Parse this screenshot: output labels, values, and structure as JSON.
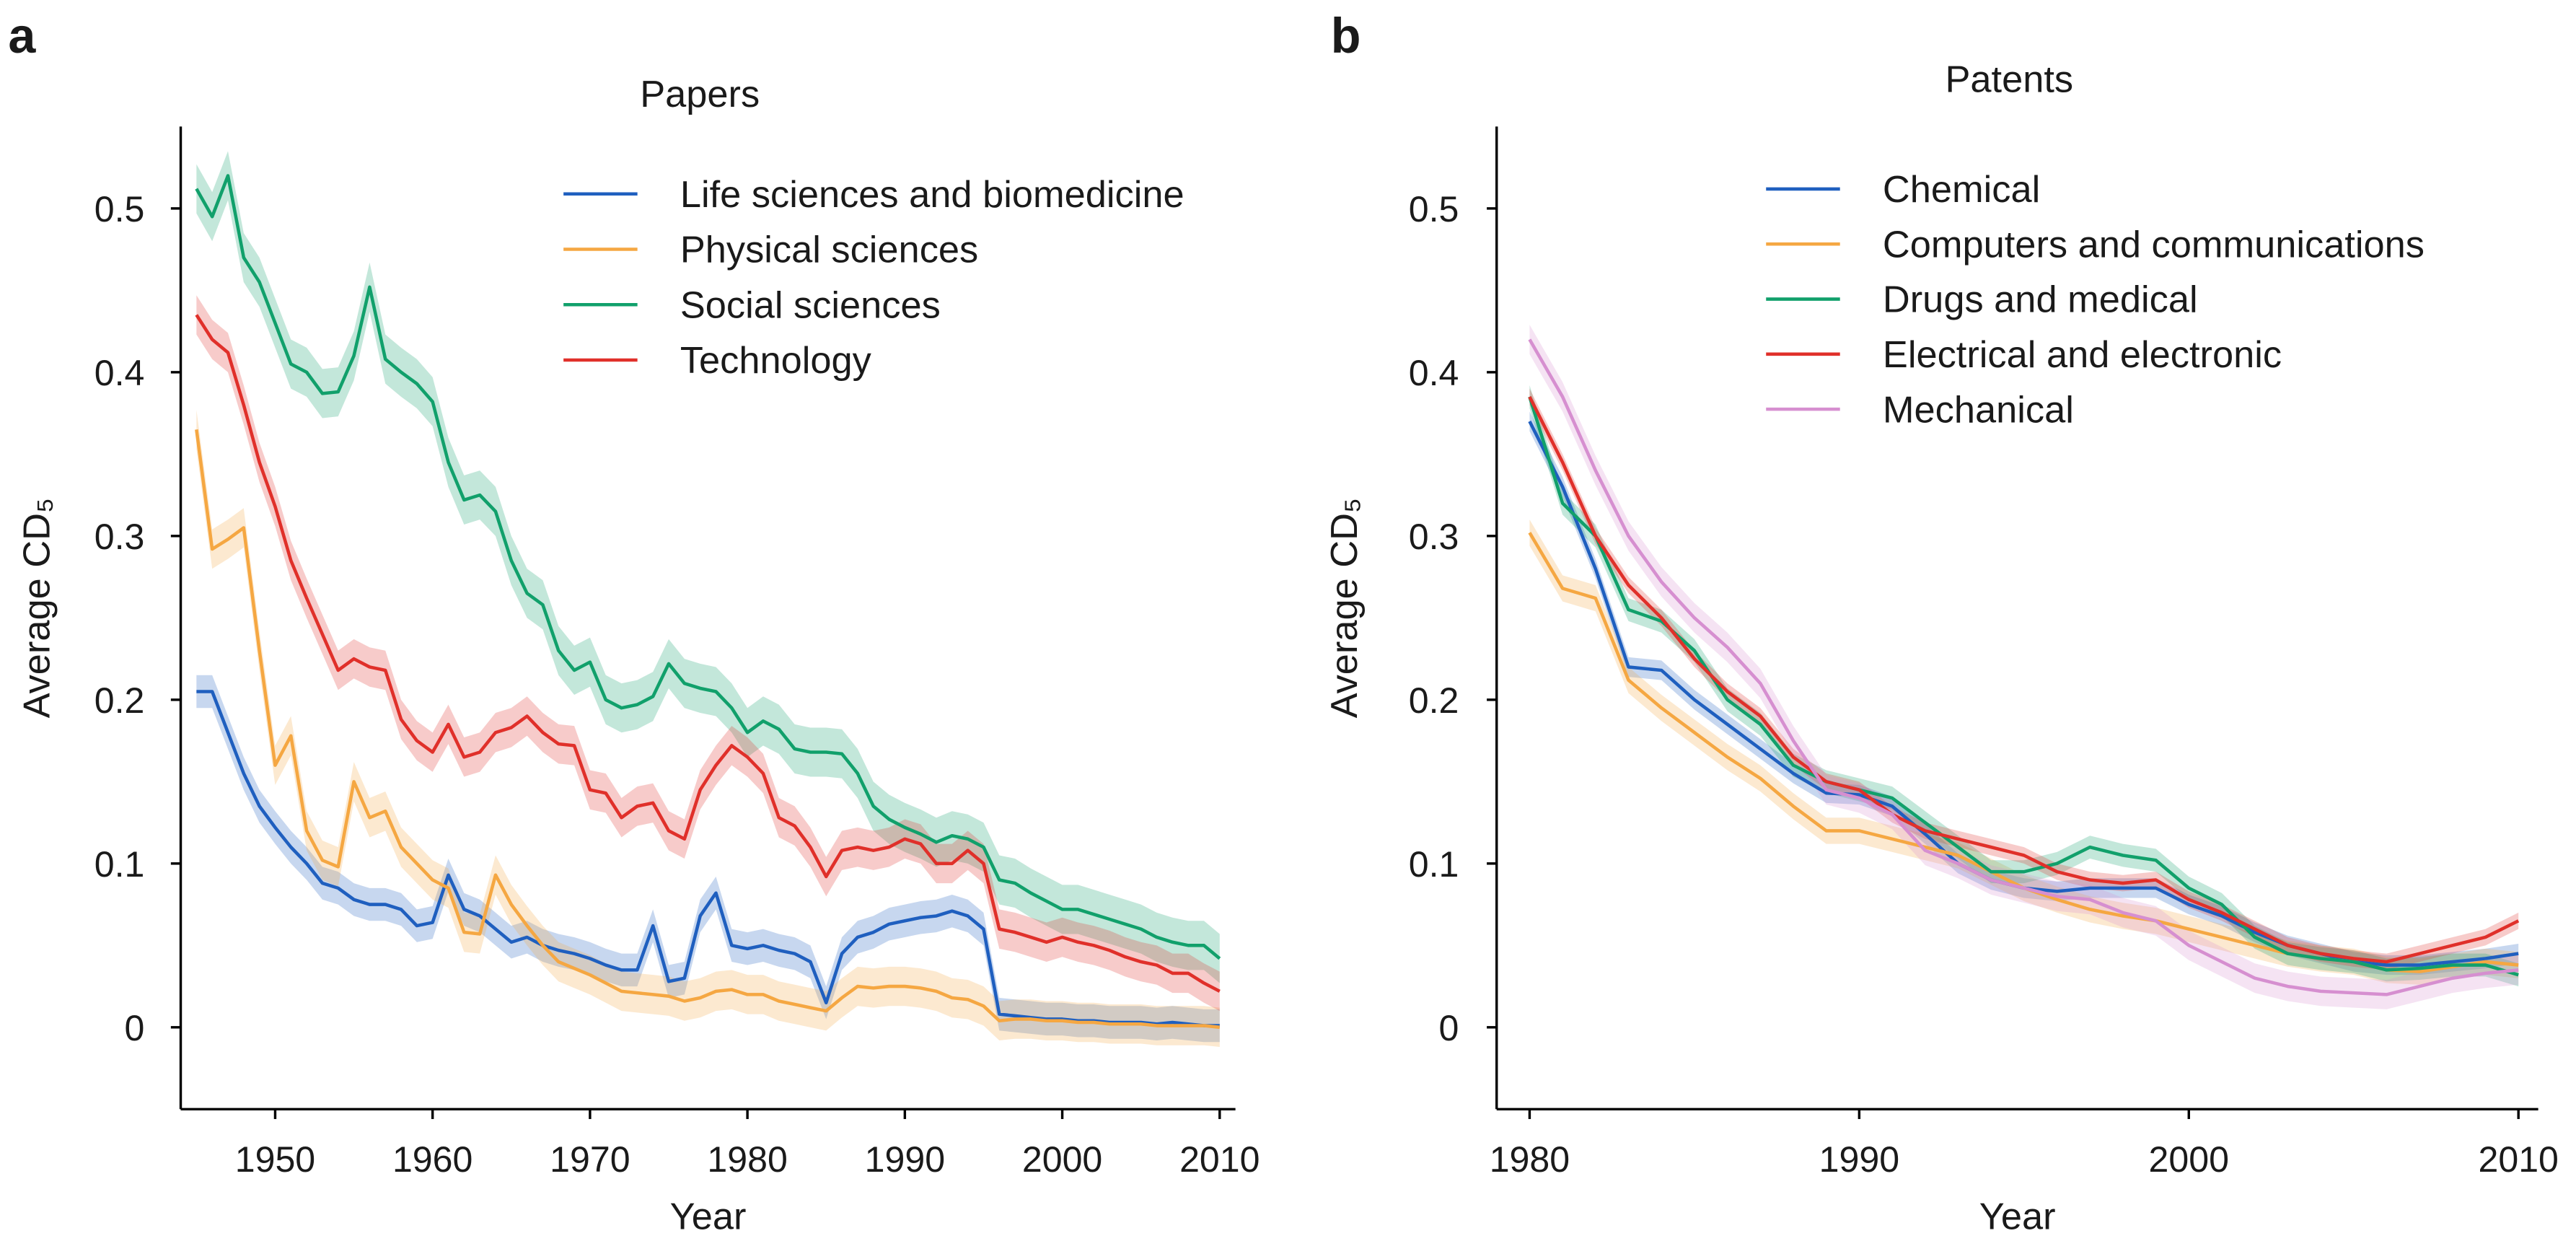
{
  "chart_data": [
    {
      "type": "line",
      "panel_label": "a",
      "title": "Papers",
      "x_label": "Year",
      "y_label": "Average CD₅",
      "xlim": [
        1944,
        2011
      ],
      "ylim": [
        -0.05,
        0.55
      ],
      "xticks": [
        1950,
        1960,
        1970,
        1980,
        1990,
        2000,
        2010
      ],
      "yticks": [
        0,
        0.1,
        0.2,
        0.3,
        0.4,
        0.5
      ],
      "x": [
        1945,
        1946,
        1947,
        1948,
        1949,
        1950,
        1951,
        1952,
        1953,
        1954,
        1955,
        1956,
        1957,
        1958,
        1959,
        1960,
        1961,
        1962,
        1963,
        1964,
        1965,
        1966,
        1967,
        1968,
        1969,
        1970,
        1971,
        1972,
        1973,
        1974,
        1975,
        1976,
        1977,
        1978,
        1979,
        1980,
        1981,
        1982,
        1983,
        1984,
        1985,
        1986,
        1987,
        1988,
        1989,
        1990,
        1991,
        1992,
        1993,
        1994,
        1995,
        1996,
        1997,
        1998,
        1999,
        2000,
        2001,
        2002,
        2003,
        2004,
        2005,
        2006,
        2007,
        2008,
        2009,
        2010
      ],
      "series": [
        {
          "name": "Life sciences and biomedicine",
          "color": "#1f5fbf",
          "ci": 0.01,
          "values": [
            0.205,
            0.205,
            0.18,
            0.155,
            0.135,
            0.122,
            0.11,
            0.1,
            0.088,
            0.085,
            0.078,
            0.075,
            0.075,
            0.072,
            0.062,
            0.064,
            0.093,
            0.072,
            0.068,
            0.06,
            0.052,
            0.055,
            0.05,
            0.047,
            0.045,
            0.042,
            0.038,
            0.035,
            0.035,
            0.062,
            0.028,
            0.03,
            0.068,
            0.082,
            0.05,
            0.048,
            0.05,
            0.047,
            0.045,
            0.04,
            0.015,
            0.045,
            0.055,
            0.058,
            0.063,
            0.065,
            0.067,
            0.068,
            0.071,
            0.068,
            0.06,
            0.008,
            0.007,
            0.006,
            0.005,
            0.005,
            0.004,
            0.004,
            0.003,
            0.003,
            0.003,
            0.002,
            0.003,
            0.002,
            0.001,
            0.001
          ]
        },
        {
          "name": "Physical sciences",
          "color": "#f5a742",
          "ci": 0.012,
          "values": [
            0.365,
            0.292,
            0.298,
            0.305,
            0.23,
            0.16,
            0.178,
            0.12,
            0.102,
            0.098,
            0.15,
            0.128,
            0.132,
            0.11,
            0.1,
            0.09,
            0.085,
            0.058,
            0.057,
            0.093,
            0.075,
            0.062,
            0.05,
            0.04,
            0.036,
            0.032,
            0.027,
            0.022,
            0.021,
            0.02,
            0.019,
            0.016,
            0.018,
            0.022,
            0.023,
            0.02,
            0.02,
            0.016,
            0.014,
            0.012,
            0.01,
            0.018,
            0.025,
            0.024,
            0.025,
            0.025,
            0.024,
            0.022,
            0.018,
            0.017,
            0.013,
            0.004,
            0.005,
            0.005,
            0.004,
            0.004,
            0.003,
            0.003,
            0.002,
            0.002,
            0.002,
            0.001,
            0.001,
            0.001,
            0.001,
            0
          ]
        },
        {
          "name": "Social sciences",
          "color": "#11a06b",
          "ci": 0.015,
          "values": [
            0.512,
            0.495,
            0.52,
            0.47,
            0.455,
            0.43,
            0.405,
            0.4,
            0.387,
            0.388,
            0.41,
            0.452,
            0.408,
            0.4,
            0.393,
            0.382,
            0.345,
            0.322,
            0.325,
            0.315,
            0.285,
            0.265,
            0.258,
            0.23,
            0.218,
            0.223,
            0.2,
            0.195,
            0.197,
            0.202,
            0.222,
            0.21,
            0.207,
            0.205,
            0.195,
            0.18,
            0.187,
            0.182,
            0.17,
            0.168,
            0.168,
            0.167,
            0.155,
            0.135,
            0.127,
            0.122,
            0.118,
            0.113,
            0.117,
            0.115,
            0.11,
            0.09,
            0.088,
            0.082,
            0.077,
            0.072,
            0.072,
            0.069,
            0.066,
            0.063,
            0.06,
            0.055,
            0.052,
            0.05,
            0.05,
            0.042
          ]
        },
        {
          "name": "Technology",
          "color": "#e0302a",
          "ci": 0.012,
          "values": [
            0.435,
            0.42,
            0.412,
            0.38,
            0.345,
            0.318,
            0.285,
            0.262,
            0.24,
            0.218,
            0.225,
            0.22,
            0.218,
            0.188,
            0.175,
            0.168,
            0.185,
            0.165,
            0.168,
            0.18,
            0.183,
            0.19,
            0.18,
            0.173,
            0.172,
            0.145,
            0.143,
            0.128,
            0.135,
            0.137,
            0.12,
            0.115,
            0.145,
            0.16,
            0.172,
            0.165,
            0.155,
            0.128,
            0.123,
            0.11,
            0.092,
            0.108,
            0.11,
            0.108,
            0.11,
            0.115,
            0.112,
            0.1,
            0.1,
            0.108,
            0.1,
            0.06,
            0.058,
            0.055,
            0.052,
            0.055,
            0.052,
            0.05,
            0.047,
            0.043,
            0.04,
            0.038,
            0.033,
            0.033,
            0.027,
            0.022
          ]
        }
      ]
    },
    {
      "type": "line",
      "panel_label": "b",
      "title": "Patents",
      "x_label": "Year",
      "y_label": "Average CD₅",
      "xlim": [
        1979,
        2010.6
      ],
      "ylim": [
        -0.05,
        0.55
      ],
      "xticks": [
        1980,
        1990,
        2000,
        2010
      ],
      "yticks": [
        0,
        0.1,
        0.2,
        0.3,
        0.4,
        0.5
      ],
      "x": [
        1980,
        1981,
        1982,
        1983,
        1984,
        1985,
        1986,
        1987,
        1988,
        1989,
        1990,
        1991,
        1992,
        1993,
        1994,
        1995,
        1996,
        1997,
        1998,
        1999,
        2000,
        2001,
        2002,
        2003,
        2004,
        2005,
        2006,
        2007,
        2008,
        2009,
        2010
      ],
      "series": [
        {
          "name": "Chemical",
          "color": "#1f5fbf",
          "ci": 0.006,
          "values": [
            0.37,
            0.33,
            0.28,
            0.22,
            0.218,
            0.2,
            0.185,
            0.17,
            0.155,
            0.143,
            0.142,
            0.135,
            0.118,
            0.1,
            0.09,
            0.085,
            0.083,
            0.085,
            0.085,
            0.085,
            0.075,
            0.068,
            0.058,
            0.05,
            0.045,
            0.04,
            0.038,
            0.038,
            0.04,
            0.042,
            0.045
          ]
        },
        {
          "name": "Computers and communications",
          "color": "#f5a742",
          "ci": 0.008,
          "values": [
            0.302,
            0.268,
            0.262,
            0.212,
            0.195,
            0.18,
            0.165,
            0.152,
            0.135,
            0.12,
            0.12,
            0.115,
            0.11,
            0.105,
            0.095,
            0.085,
            0.078,
            0.072,
            0.068,
            0.065,
            0.06,
            0.055,
            0.05,
            0.045,
            0.042,
            0.04,
            0.035,
            0.034,
            0.037,
            0.04,
            0.038
          ]
        },
        {
          "name": "Drugs and medical",
          "color": "#11a06b",
          "ci": 0.007,
          "values": [
            0.385,
            0.32,
            0.3,
            0.255,
            0.248,
            0.23,
            0.2,
            0.185,
            0.16,
            0.15,
            0.145,
            0.14,
            0.125,
            0.11,
            0.095,
            0.095,
            0.1,
            0.11,
            0.105,
            0.102,
            0.085,
            0.075,
            0.055,
            0.045,
            0.042,
            0.04,
            0.035,
            0.036,
            0.038,
            0.038,
            0.032
          ]
        },
        {
          "name": "Electrical and electronic",
          "color": "#e0302a",
          "ci": 0.005,
          "values": [
            0.385,
            0.345,
            0.3,
            0.27,
            0.25,
            0.225,
            0.205,
            0.19,
            0.165,
            0.15,
            0.145,
            0.13,
            0.12,
            0.115,
            0.11,
            0.105,
            0.095,
            0.09,
            0.088,
            0.09,
            0.078,
            0.07,
            0.06,
            0.05,
            0.045,
            0.042,
            0.04,
            0.045,
            0.05,
            0.055,
            0.065
          ]
        },
        {
          "name": "Mechanical",
          "color": "#d68fd0",
          "ci": 0.009,
          "values": [
            0.42,
            0.385,
            0.34,
            0.3,
            0.272,
            0.25,
            0.232,
            0.21,
            0.175,
            0.145,
            0.14,
            0.13,
            0.108,
            0.1,
            0.09,
            0.085,
            0.08,
            0.078,
            0.07,
            0.065,
            0.05,
            0.04,
            0.03,
            0.025,
            0.022,
            0.021,
            0.02,
            0.025,
            0.03,
            0.033,
            0.035
          ]
        }
      ]
    }
  ]
}
